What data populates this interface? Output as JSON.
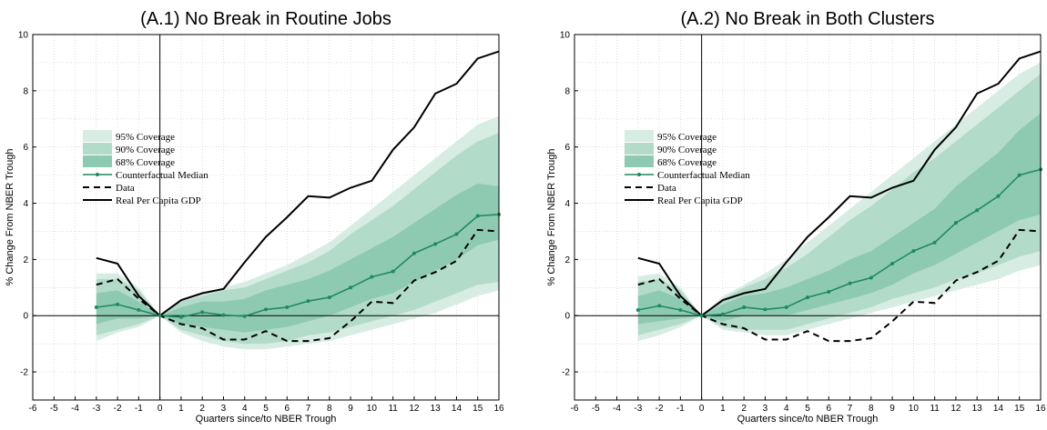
{
  "colors": {
    "band95": "#d7ece3",
    "band90": "#b3dbca",
    "band68": "#8ecab2",
    "median": "#1f8a5f",
    "data": "#000000",
    "gdp": "#000000",
    "grid": "#c8c8c8"
  },
  "chart_data": [
    {
      "type": "line",
      "title": "(A.1) No Break in Routine Jobs",
      "xlabel": "Quarters since/to NBER Trough",
      "ylabel": "% Change From NBER Trough",
      "xlim": [
        -6,
        16
      ],
      "ylim": [
        -3,
        10
      ],
      "grid": true,
      "legend_position": "left",
      "x_ticks": [
        "-6",
        "-5",
        "-4",
        "-3",
        "-2",
        "-1",
        "0",
        "1",
        "2",
        "3",
        "4",
        "5",
        "6",
        "7",
        "8",
        "9",
        "10",
        "11",
        "12",
        "13",
        "14",
        "15",
        "16"
      ],
      "y_ticks": [
        "-2",
        "0",
        "2",
        "4",
        "6",
        "8",
        "10"
      ],
      "legend": [
        "95% Coverage",
        "90% Coverage",
        "68% Coverage",
        "Counterfactual Median",
        "Data",
        "Real Per Capita GDP"
      ],
      "x": [
        -3,
        -2,
        -1,
        0,
        1,
        2,
        3,
        4,
        5,
        6,
        7,
        8,
        9,
        10,
        11,
        12,
        13,
        14,
        15,
        16
      ],
      "bands": {
        "b95": {
          "lower": [
            -0.9,
            -0.6,
            -0.4,
            0,
            -0.6,
            -0.9,
            -1.1,
            -1.2,
            -1.2,
            -1.1,
            -1.0,
            -0.9,
            -0.7,
            -0.5,
            -0.3,
            -0.1,
            0.1,
            0.4,
            0.7,
            0.9
          ],
          "upper": [
            1.5,
            1.5,
            1.0,
            0,
            0.6,
            0.8,
            1.0,
            1.2,
            1.5,
            1.8,
            2.2,
            2.6,
            3.2,
            3.8,
            4.4,
            5.0,
            5.6,
            6.2,
            6.8,
            7.1
          ]
        },
        "b90": {
          "lower": [
            -0.7,
            -0.5,
            -0.3,
            0,
            -0.5,
            -0.7,
            -0.9,
            -1.0,
            -1.0,
            -0.9,
            -0.7,
            -0.6,
            -0.4,
            -0.2,
            0.0,
            0.2,
            0.5,
            0.8,
            1.1,
            1.2
          ],
          "upper": [
            1.3,
            1.3,
            0.9,
            0,
            0.5,
            0.7,
            0.9,
            1.0,
            1.3,
            1.6,
            1.9,
            2.3,
            2.9,
            3.4,
            3.9,
            4.5,
            5.1,
            5.7,
            6.2,
            6.5
          ]
        },
        "b68": {
          "lower": [
            -0.3,
            -0.1,
            -0.1,
            0,
            -0.3,
            -0.4,
            -0.5,
            -0.6,
            -0.5,
            -0.4,
            -0.2,
            0.0,
            0.3,
            0.6,
            0.8,
            1.2,
            1.6,
            2.0,
            2.5,
            2.7
          ],
          "upper": [
            0.8,
            0.9,
            0.5,
            0,
            0.3,
            0.5,
            0.5,
            0.6,
            0.9,
            1.1,
            1.3,
            1.6,
            2.0,
            2.4,
            2.8,
            3.3,
            3.8,
            4.3,
            4.7,
            4.6
          ]
        }
      },
      "series": [
        {
          "name": "Counterfactual Median",
          "values": [
            0.3,
            0.4,
            0.2,
            0,
            -0.05,
            0.12,
            0.02,
            -0.02,
            0.22,
            0.3,
            0.52,
            0.65,
            1.0,
            1.38,
            1.57,
            2.22,
            2.55,
            2.9,
            3.55,
            3.6
          ]
        },
        {
          "name": "Data",
          "values": [
            1.1,
            1.3,
            0.6,
            0,
            -0.3,
            -0.45,
            -0.85,
            -0.85,
            -0.55,
            -0.9,
            -0.9,
            -0.8,
            -0.2,
            0.5,
            0.45,
            1.25,
            1.55,
            1.95,
            3.05,
            3.0
          ]
        },
        {
          "name": "Real Per Capita GDP",
          "values": [
            2.05,
            1.85,
            0.7,
            0,
            0.55,
            0.8,
            0.95,
            1.9,
            2.8,
            3.5,
            4.25,
            4.2,
            4.55,
            4.8,
            5.9,
            6.7,
            7.9,
            8.25,
            9.15,
            9.4
          ]
        }
      ]
    },
    {
      "type": "line",
      "title": "(A.2) No Break in Both Clusters",
      "xlabel": "Quarters since/to NBER Trough",
      "ylabel": "% Change From NBER Trough",
      "xlim": [
        -6,
        16
      ],
      "ylim": [
        -3,
        10
      ],
      "grid": true,
      "legend_position": "left",
      "x_ticks": [
        "-6",
        "-5",
        "-4",
        "-3",
        "-2",
        "-1",
        "0",
        "1",
        "2",
        "3",
        "4",
        "5",
        "6",
        "7",
        "8",
        "9",
        "10",
        "11",
        "12",
        "13",
        "14",
        "15",
        "16"
      ],
      "y_ticks": [
        "-2",
        "0",
        "2",
        "4",
        "6",
        "8",
        "10"
      ],
      "legend": [
        "95% Coverage",
        "90% Coverage",
        "68% Coverage",
        "Counterfactual Median",
        "Data",
        "Real Per Capita GDP"
      ],
      "x": [
        -3,
        -2,
        -1,
        0,
        1,
        2,
        3,
        4,
        5,
        6,
        7,
        8,
        9,
        10,
        11,
        12,
        13,
        14,
        15,
        16
      ],
      "bands": {
        "b95": {
          "lower": [
            -0.9,
            -0.7,
            -0.4,
            0,
            -0.5,
            -0.6,
            -0.7,
            -0.7,
            -0.5,
            -0.3,
            -0.1,
            0.1,
            0.3,
            0.5,
            0.7,
            0.9,
            1.1,
            1.3,
            1.6,
            1.8
          ],
          "upper": [
            1.4,
            1.5,
            1.0,
            0,
            0.7,
            1.1,
            1.5,
            2.0,
            2.6,
            3.2,
            3.8,
            4.4,
            5.0,
            5.6,
            6.2,
            6.8,
            7.4,
            8.0,
            8.6,
            9.0
          ]
        },
        "b90": {
          "lower": [
            -0.7,
            -0.5,
            -0.3,
            0,
            -0.4,
            -0.5,
            -0.5,
            -0.5,
            -0.3,
            -0.1,
            0.1,
            0.3,
            0.6,
            0.8,
            1.0,
            1.3,
            1.5,
            1.8,
            2.1,
            2.3
          ],
          "upper": [
            1.2,
            1.3,
            0.9,
            0,
            0.6,
            1.0,
            1.3,
            1.7,
            2.2,
            2.8,
            3.4,
            3.9,
            4.5,
            5.1,
            5.6,
            6.2,
            6.8,
            7.4,
            8.0,
            8.6
          ]
        },
        "b68": {
          "lower": [
            -0.3,
            -0.2,
            -0.1,
            0,
            -0.2,
            0.0,
            0.0,
            0.0,
            0.2,
            0.4,
            0.6,
            0.8,
            1.1,
            1.5,
            1.8,
            2.2,
            2.6,
            3.0,
            3.4,
            3.6
          ],
          "upper": [
            0.7,
            0.9,
            0.6,
            0,
            0.4,
            0.7,
            0.8,
            1.0,
            1.3,
            1.6,
            2.0,
            2.3,
            2.8,
            3.3,
            3.8,
            4.6,
            5.2,
            5.8,
            6.6,
            7.2
          ]
        }
      },
      "series": [
        {
          "name": "Counterfactual Median",
          "values": [
            0.2,
            0.35,
            0.2,
            0,
            0.05,
            0.3,
            0.22,
            0.3,
            0.65,
            0.85,
            1.15,
            1.35,
            1.85,
            2.3,
            2.6,
            3.3,
            3.75,
            4.25,
            5.0,
            5.2
          ]
        },
        {
          "name": "Data",
          "values": [
            1.1,
            1.3,
            0.6,
            0,
            -0.3,
            -0.45,
            -0.85,
            -0.85,
            -0.55,
            -0.9,
            -0.9,
            -0.8,
            -0.2,
            0.5,
            0.45,
            1.25,
            1.55,
            1.95,
            3.05,
            3.0
          ]
        },
        {
          "name": "Real Per Capita GDP",
          "values": [
            2.05,
            1.85,
            0.7,
            0,
            0.55,
            0.8,
            0.95,
            1.9,
            2.8,
            3.5,
            4.25,
            4.2,
            4.55,
            4.8,
            5.9,
            6.7,
            7.9,
            8.25,
            9.15,
            9.4
          ]
        }
      ]
    }
  ]
}
